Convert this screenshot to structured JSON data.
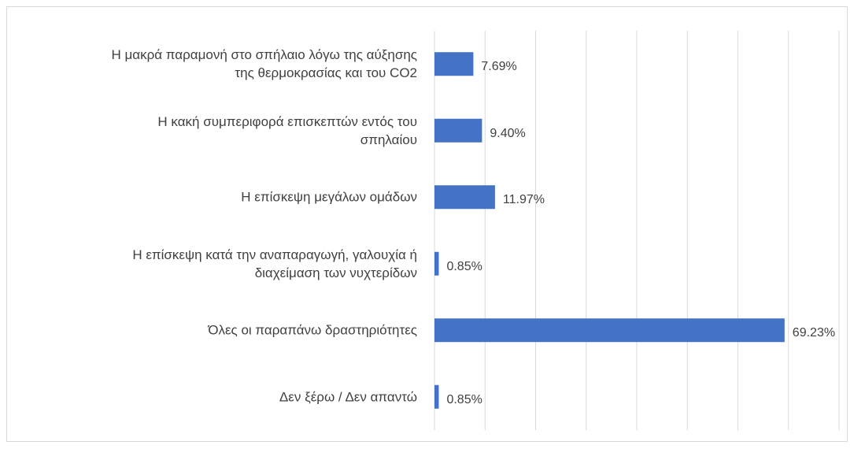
{
  "chart_data": {
    "type": "bar",
    "orientation": "horizontal",
    "categories": [
      "Η μακρά παραμονή στο σπήλαιο λόγω της αύξησης\nτης θερμοκρασίας και του CO2",
      "Η κακή συμπεριφορά επισκεπτών εντός του\nσπηλαίου",
      "Η επίσκεψη μεγάλων ομάδων",
      "Η επίσκεψη κατά την αναπαραγωγή, γαλουχία ή\nδιαχείμαση των νυχτερίδων",
      "Όλες οι παραπάνω δραστηριότητες",
      "Δεν ξέρω / Δεν απαντώ"
    ],
    "values": [
      7.69,
      9.4,
      11.97,
      0.85,
      69.23,
      0.85
    ],
    "value_labels": [
      "7.69%",
      "9.40%",
      "11.97%",
      "0.85%",
      "69.23%",
      "0.85%"
    ],
    "color": "#4472c4",
    "xlim": [
      0,
      80
    ],
    "xticks": [
      0,
      10,
      20,
      30,
      40,
      50,
      60,
      70,
      80
    ],
    "grid": true
  }
}
